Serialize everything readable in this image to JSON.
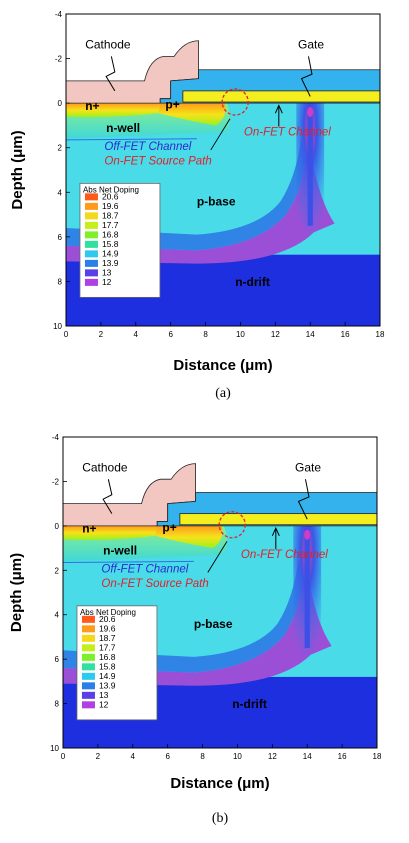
{
  "figures": [
    {
      "id": "a",
      "caption": "(a)",
      "x_ticks": [
        "0",
        "2",
        "4",
        "6",
        "8",
        "10",
        "12",
        "14",
        "16",
        "18"
      ],
      "y_ticks": [
        "-4",
        "-2",
        "0",
        "2",
        "4",
        "6",
        "8",
        "10"
      ],
      "x_label": "Distance (μm)",
      "y_label": "Depth (μm)",
      "labels": {
        "cathode": "Cathode",
        "gate": "Gate",
        "n_plus": "n+",
        "p_plus": "p+",
        "n_well": "n-well",
        "p_base": "p-base",
        "n_drift": "n-drift",
        "off_fet_channel": "Off-FET Channel",
        "on_fet_source_path": "On-FET Source Path",
        "on_fet_channel": "On-FET Channel"
      },
      "legend": {
        "title": "Abs Net Doping",
        "values": [
          "20.6",
          "19.6",
          "18.7",
          "17.7",
          "16.8",
          "15.8",
          "14.9",
          "13.9",
          "13",
          "12"
        ]
      }
    },
    {
      "id": "b",
      "caption": "(b)",
      "x_ticks": [
        "0",
        "2",
        "4",
        "6",
        "8",
        "10",
        "12",
        "14",
        "16",
        "18"
      ],
      "y_ticks": [
        "-4",
        "-2",
        "0",
        "2",
        "4",
        "6",
        "8",
        "10"
      ],
      "x_label": "Distance (μm)",
      "y_label": "Depth (μm)",
      "labels": {
        "cathode": "Cathode",
        "gate": "Gate",
        "n_plus": "n+",
        "p_plus": "p+",
        "n_well": "n-well",
        "p_base": "p-base",
        "n_drift": "n-drift",
        "off_fet_channel": "Off-FET Channel",
        "on_fet_source_path": "On-FET Source Path",
        "on_fet_channel": "On-FET Channel"
      },
      "legend": {
        "title": "Abs Net Doping",
        "values": [
          "20.6",
          "19.6",
          "18.7",
          "17.7",
          "16.8",
          "15.8",
          "14.9",
          "13.9",
          "13",
          "12"
        ]
      }
    }
  ],
  "colors": {
    "metal": "#f2c7c2",
    "gate_oxide": "#34b2ee",
    "poly": "#f5ee1e",
    "background_cyan": "#49dce8",
    "deep": "#1e2fe0",
    "purple": "#9a4fd6"
  }
}
